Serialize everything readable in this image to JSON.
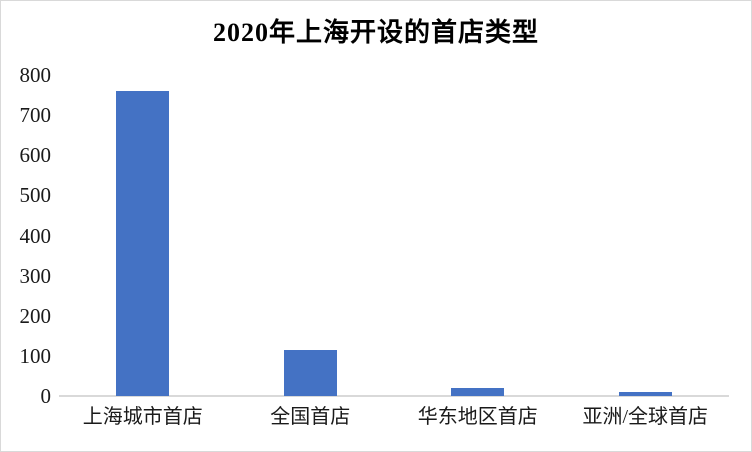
{
  "chart_data": {
    "type": "bar",
    "title": "2020年上海开设的首店类型",
    "categories": [
      "上海城市首店",
      "全国首店",
      "华东地区首店",
      "亚洲/全球首店"
    ],
    "values": [
      760,
      115,
      20,
      10
    ],
    "xlabel": "",
    "ylabel": "",
    "ylim": [
      0,
      800
    ],
    "yticks": [
      0,
      100,
      200,
      300,
      400,
      500,
      600,
      700,
      800
    ],
    "grid": "off",
    "legend": "none",
    "bar_color": "#4472c4",
    "axis_line_color": "#d9d9d9",
    "text_color": "#000000",
    "frame_border_color": "#d9d9d9"
  }
}
